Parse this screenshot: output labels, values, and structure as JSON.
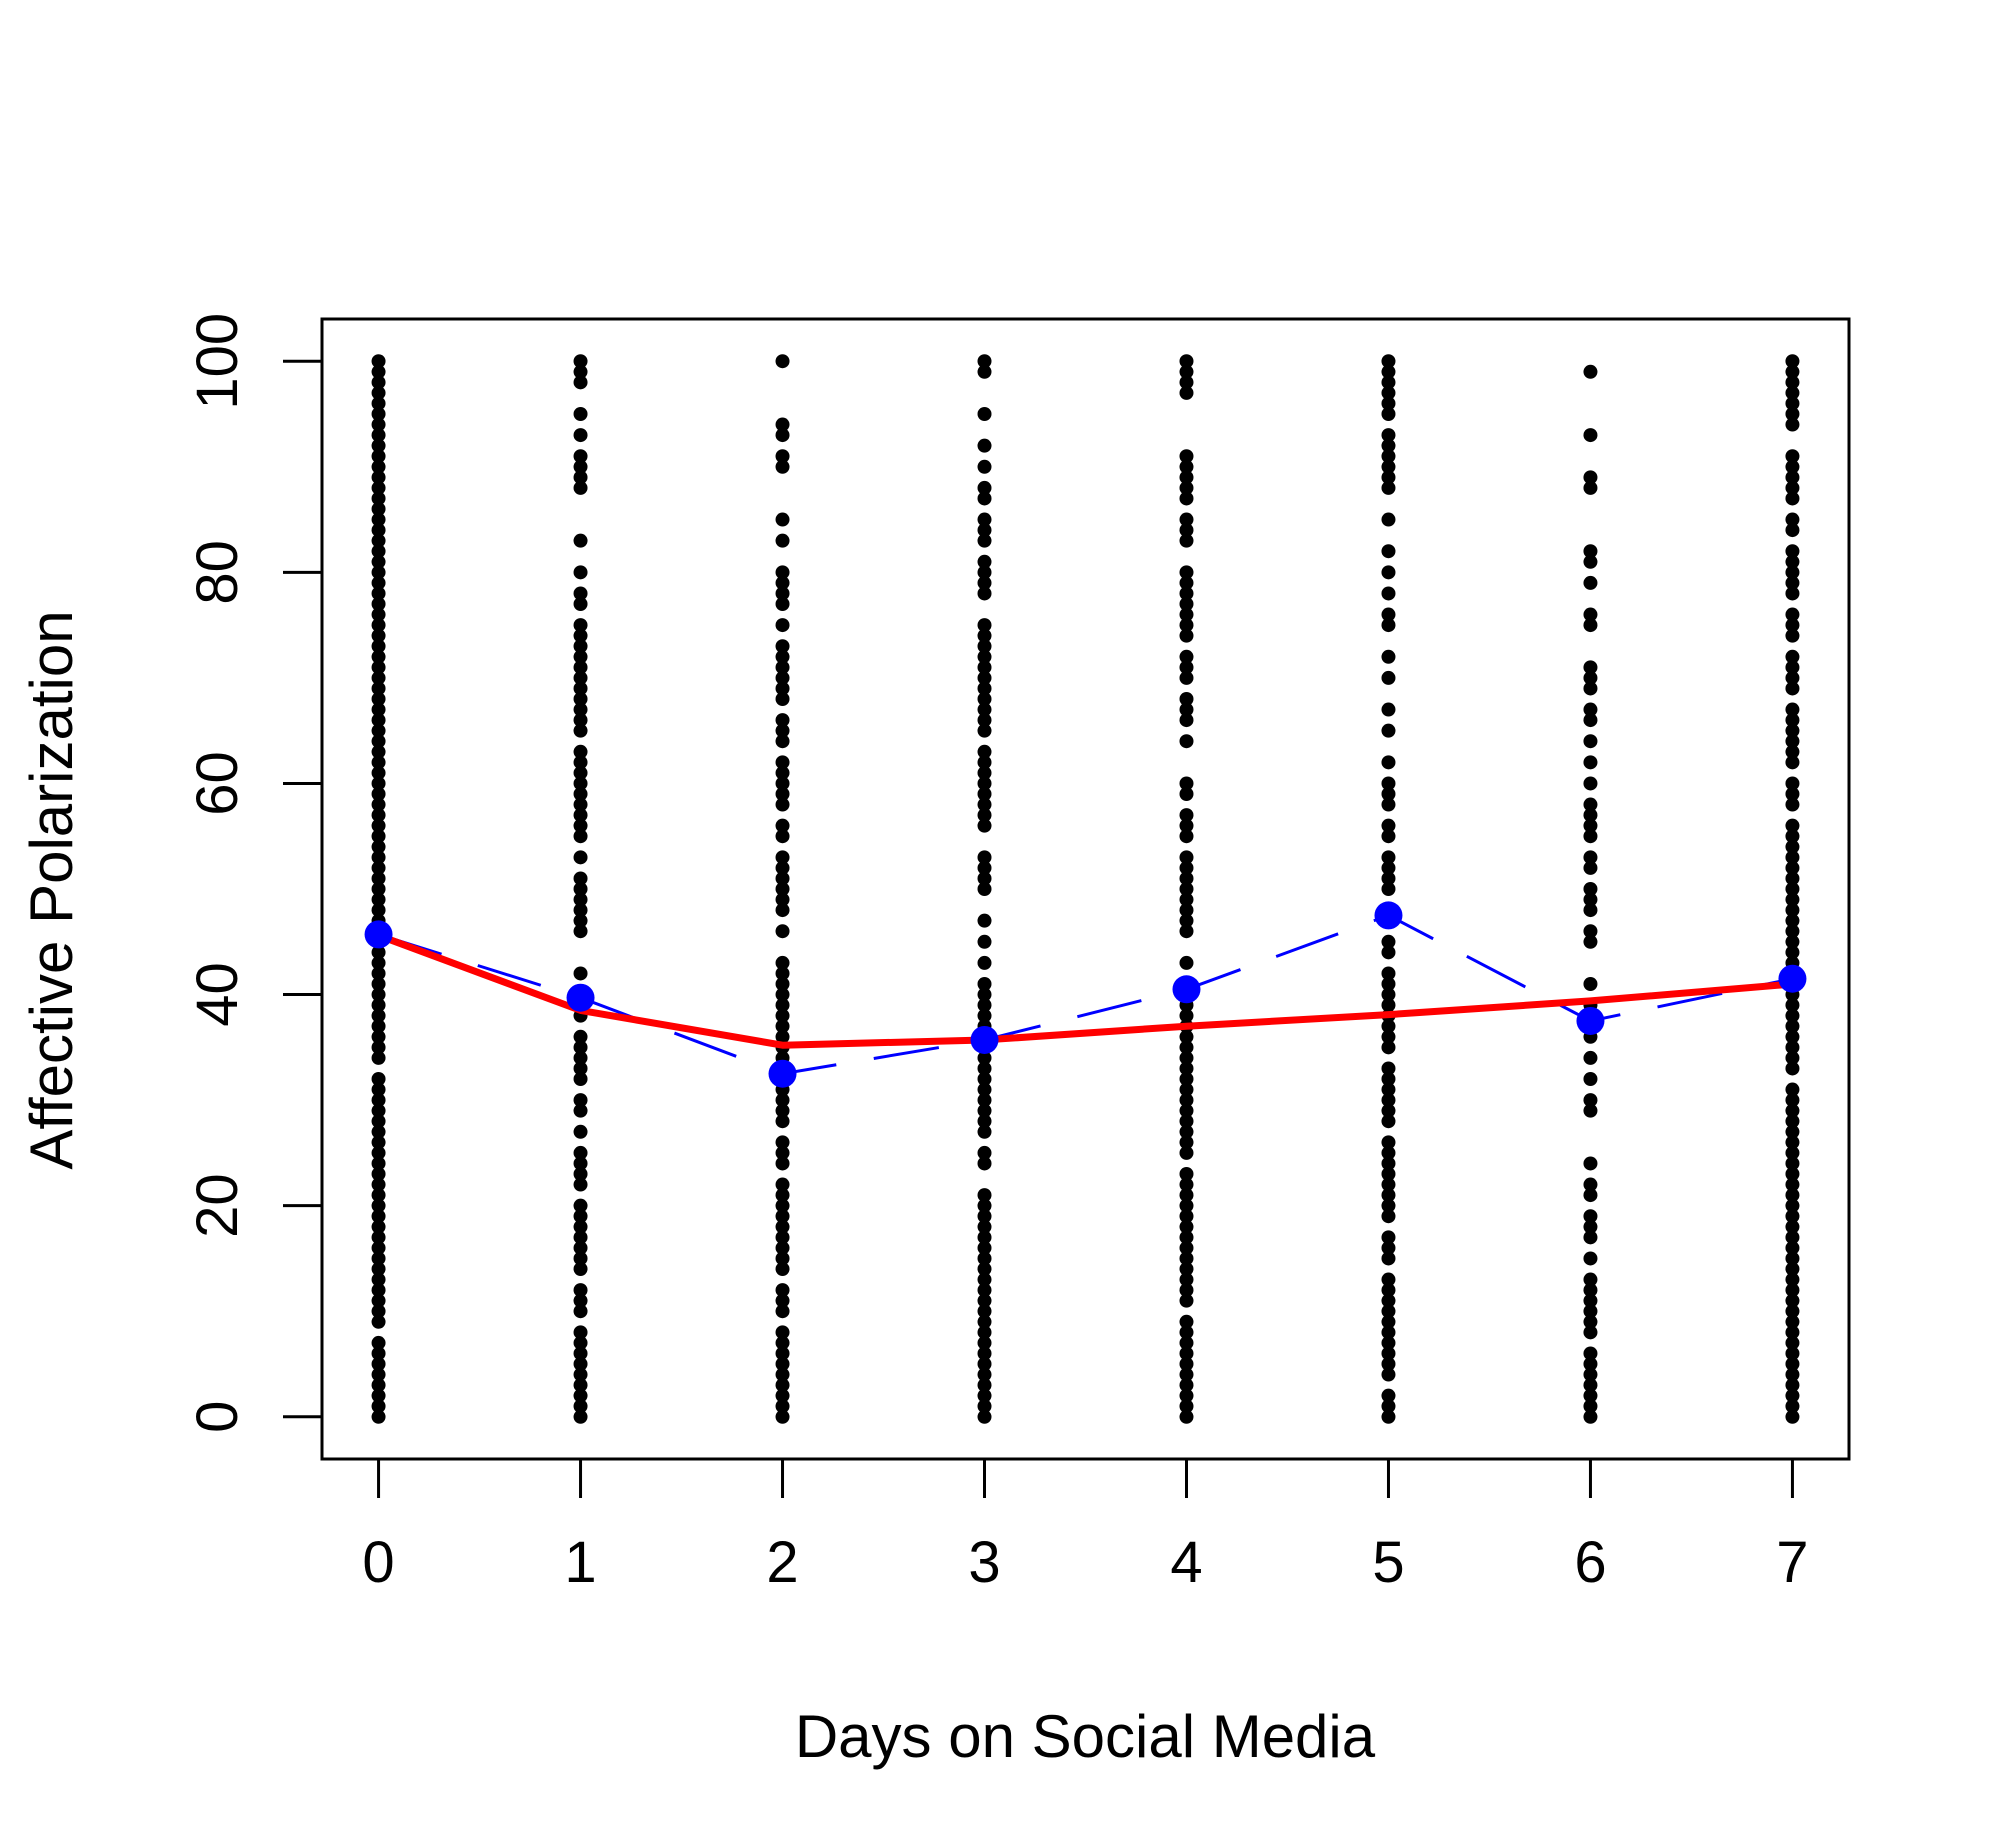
{
  "chart_data": {
    "type": "scatter",
    "title": "",
    "xlabel": "Days on Social Media",
    "ylabel": "Affective Polarization",
    "x_ticks": [
      "0",
      "1",
      "2",
      "3",
      "4",
      "5",
      "6",
      "7"
    ],
    "y_ticks": [
      "0",
      "20",
      "40",
      "60",
      "80",
      "100"
    ],
    "xlim": [
      -0.28,
      7.28
    ],
    "ylim": [
      -4,
      104
    ],
    "grid": false,
    "legend": "none",
    "colors": {
      "points": "#000000",
      "means": "#0000ff",
      "trend": "#ff0000"
    },
    "series": [
      {
        "type": "scatter",
        "points_by_x": [
          {
            "x": 0,
            "y": [
              0,
              1,
              2,
              3,
              4,
              5,
              6,
              7,
              9,
              10,
              11,
              12,
              13,
              14,
              15,
              16,
              17,
              18,
              19,
              20,
              21,
              22,
              23,
              24,
              25,
              26,
              27,
              28,
              29,
              30,
              31,
              32,
              34,
              35,
              36,
              37,
              38,
              39,
              40,
              41,
              42,
              43,
              44,
              45,
              46,
              47,
              48,
              49,
              50,
              51,
              52,
              53,
              54,
              55,
              56,
              57,
              58,
              59,
              60,
              61,
              62,
              63,
              64,
              65,
              66,
              67,
              68,
              69,
              70,
              71,
              72,
              73,
              74,
              75,
              76,
              77,
              78,
              79,
              80,
              81,
              82,
              83,
              84,
              85,
              86,
              87,
              88,
              89,
              90,
              91,
              92,
              93,
              94,
              95,
              96,
              97,
              98,
              99,
              100
            ]
          },
          {
            "x": 1,
            "y": [
              0,
              1,
              2,
              3,
              4,
              5,
              6,
              7,
              8,
              10,
              11,
              12,
              14,
              15,
              16,
              17,
              18,
              19,
              20,
              22,
              23,
              24,
              25,
              27,
              29,
              30,
              32,
              33,
              34,
              35,
              36,
              38,
              40,
              42,
              46,
              47,
              48,
              49,
              50,
              51,
              53,
              55,
              56,
              57,
              58,
              59,
              60,
              61,
              62,
              63,
              65,
              66,
              67,
              68,
              69,
              70,
              71,
              72,
              73,
              74,
              75,
              77,
              78,
              80,
              83,
              88,
              89,
              90,
              91,
              93,
              95,
              98,
              99,
              100
            ]
          },
          {
            "x": 2,
            "y": [
              0,
              1,
              2,
              3,
              4,
              5,
              6,
              7,
              8,
              10,
              11,
              12,
              14,
              15,
              16,
              17,
              18,
              19,
              20,
              21,
              22,
              24,
              25,
              26,
              28,
              29,
              30,
              31,
              32,
              33,
              34,
              35,
              36,
              37,
              38,
              39,
              40,
              41,
              42,
              43,
              46,
              48,
              49,
              50,
              51,
              52,
              53,
              55,
              56,
              58,
              59,
              60,
              61,
              62,
              64,
              65,
              66,
              68,
              69,
              70,
              71,
              72,
              73,
              75,
              77,
              78,
              79,
              80,
              83,
              85,
              90,
              91,
              93,
              94,
              100
            ]
          },
          {
            "x": 3,
            "y": [
              0,
              1,
              2,
              3,
              4,
              5,
              6,
              7,
              8,
              9,
              10,
              11,
              12,
              13,
              14,
              15,
              16,
              17,
              18,
              19,
              20,
              21,
              24,
              25,
              27,
              28,
              29,
              30,
              31,
              32,
              33,
              34,
              35,
              36,
              37,
              38,
              39,
              40,
              41,
              43,
              45,
              47,
              50,
              51,
              52,
              53,
              56,
              57,
              58,
              59,
              60,
              61,
              62,
              63,
              65,
              66,
              67,
              68,
              69,
              70,
              71,
              72,
              73,
              74,
              75,
              78,
              79,
              80,
              81,
              83,
              84,
              85,
              87,
              88,
              90,
              92,
              95,
              99,
              100
            ]
          },
          {
            "x": 4,
            "y": [
              0,
              1,
              2,
              3,
              4,
              5,
              6,
              7,
              8,
              9,
              11,
              12,
              13,
              14,
              15,
              16,
              17,
              18,
              19,
              20,
              21,
              22,
              23,
              25,
              26,
              27,
              28,
              29,
              30,
              31,
              32,
              33,
              34,
              35,
              36,
              37,
              38,
              39,
              40,
              41,
              43,
              46,
              47,
              48,
              49,
              50,
              51,
              52,
              53,
              55,
              56,
              57,
              59,
              60,
              64,
              66,
              67,
              68,
              70,
              71,
              72,
              74,
              75,
              76,
              77,
              78,
              79,
              80,
              83,
              84,
              85,
              87,
              88,
              89,
              90,
              91,
              97,
              98,
              99,
              100
            ]
          },
          {
            "x": 5,
            "y": [
              0,
              1,
              2,
              4,
              5,
              6,
              7,
              8,
              9,
              10,
              11,
              12,
              13,
              15,
              16,
              17,
              19,
              20,
              21,
              22,
              23,
              24,
              25,
              26,
              28,
              29,
              30,
              31,
              32,
              33,
              35,
              36,
              37,
              38,
              39,
              40,
              41,
              42,
              44,
              45,
              47,
              50,
              51,
              52,
              53,
              55,
              56,
              58,
              59,
              60,
              62,
              65,
              67,
              70,
              72,
              75,
              76,
              78,
              80,
              82,
              85,
              88,
              89,
              90,
              91,
              92,
              93,
              95,
              96,
              97,
              98,
              99,
              100
            ]
          },
          {
            "x": 6,
            "y": [
              0,
              1,
              2,
              3,
              4,
              5,
              6,
              8,
              9,
              10,
              11,
              12,
              13,
              15,
              17,
              18,
              19,
              21,
              22,
              24,
              29,
              30,
              32,
              34,
              36,
              37,
              38,
              39,
              41,
              45,
              46,
              48,
              49,
              50,
              52,
              53,
              55,
              56,
              57,
              58,
              60,
              62,
              64,
              66,
              67,
              69,
              70,
              71,
              75,
              76,
              79,
              81,
              82,
              88,
              89,
              93,
              99
            ]
          },
          {
            "x": 7,
            "y": [
              0,
              1,
              2,
              3,
              4,
              5,
              6,
              7,
              8,
              9,
              10,
              11,
              12,
              13,
              14,
              15,
              16,
              17,
              18,
              19,
              20,
              21,
              22,
              23,
              24,
              25,
              26,
              27,
              28,
              29,
              30,
              31,
              33,
              34,
              35,
              36,
              37,
              38,
              39,
              40,
              41,
              42,
              43,
              44,
              45,
              46,
              47,
              48,
              49,
              50,
              51,
              52,
              53,
              54,
              55,
              56,
              58,
              59,
              60,
              62,
              63,
              64,
              65,
              66,
              67,
              69,
              70,
              71,
              72,
              74,
              75,
              76,
              78,
              79,
              80,
              81,
              82,
              84,
              85,
              87,
              88,
              89,
              90,
              91,
              94,
              95,
              96,
              97,
              98,
              99,
              100
            ]
          }
        ]
      },
      {
        "type": "line",
        "style": "dashed",
        "markers": true,
        "x": [
          0,
          1,
          2,
          3,
          4,
          5,
          6,
          7
        ],
        "y": [
          45.7,
          39.7,
          32.5,
          35.7,
          40.5,
          47.5,
          37.5,
          41.5
        ]
      },
      {
        "type": "line",
        "style": "solid",
        "x": [
          0,
          1,
          2,
          3,
          4,
          5,
          6,
          7
        ],
        "y": [
          45.6,
          38.5,
          35.2,
          35.7,
          37.0,
          38.1,
          39.4,
          41.0
        ]
      }
    ]
  }
}
